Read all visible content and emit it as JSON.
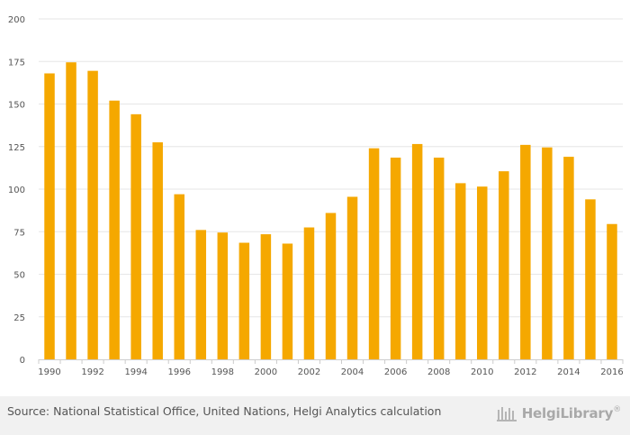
{
  "chart_data": {
    "type": "bar",
    "title": "",
    "xlabel": "",
    "ylabel": "",
    "ylim": [
      0,
      200
    ],
    "yticks": [
      0,
      25,
      50,
      75,
      100,
      125,
      150,
      175,
      200
    ],
    "categories": [
      "1990",
      "1991",
      "1992",
      "1993",
      "1994",
      "1995",
      "1996",
      "1997",
      "1998",
      "1999",
      "2000",
      "2001",
      "2002",
      "2003",
      "2004",
      "2005",
      "2006",
      "2007",
      "2008",
      "2009",
      "2010",
      "2011",
      "2012",
      "2013",
      "2014",
      "2015",
      "2016"
    ],
    "xtick_labels": [
      "1990",
      "1992",
      "1994",
      "1996",
      "1998",
      "2000",
      "2002",
      "2004",
      "2006",
      "2008",
      "2010",
      "2012",
      "2014",
      "2016"
    ],
    "values": [
      168,
      174.5,
      169.5,
      152,
      144,
      127.5,
      97,
      76,
      74.5,
      68.5,
      73.5,
      68,
      77.5,
      86,
      95.5,
      124,
      118.5,
      126.5,
      118.5,
      103.5,
      101.5,
      110.5,
      126,
      124.5,
      119,
      94,
      79.5
    ],
    "colors": {
      "bar": "#f5a800",
      "grid": "#e6e6e6",
      "axis": "#cccccc",
      "tick_text": "#555555"
    }
  },
  "footer": {
    "source": "Source: National Statistical Office, United Nations, Helgi Analytics calculation",
    "brand": "HelgiLibrary",
    "brand_mark": "®"
  }
}
